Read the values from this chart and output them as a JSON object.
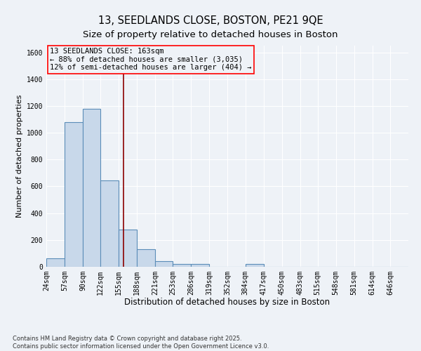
{
  "title1": "13, SEEDLANDS CLOSE, BOSTON, PE21 9QE",
  "title2": "Size of property relative to detached houses in Boston",
  "xlabel": "Distribution of detached houses by size in Boston",
  "ylabel": "Number of detached properties",
  "bin_edges": [
    24,
    57,
    90,
    122,
    155,
    188,
    221,
    253,
    286,
    319,
    352,
    384,
    417,
    450,
    483,
    515,
    548,
    581,
    614,
    646,
    679
  ],
  "bar_heights": [
    65,
    1080,
    1180,
    645,
    280,
    130,
    40,
    20,
    20,
    0,
    0,
    20,
    0,
    0,
    0,
    0,
    0,
    0,
    0,
    0
  ],
  "bar_color": "#c8d8ea",
  "bar_edgecolor": "#5b8db8",
  "bar_linewidth": 0.8,
  "vline_x": 163,
  "vline_color": "#8b0000",
  "vline_linewidth": 1.2,
  "annotation_line1": "13 SEEDLANDS CLOSE: 163sqm",
  "annotation_line2": "← 88% of detached houses are smaller (3,035)",
  "annotation_line3": "12% of semi-detached houses are larger (404) →",
  "ylim": [
    0,
    1650
  ],
  "yticks": [
    0,
    200,
    400,
    600,
    800,
    1000,
    1200,
    1400,
    1600
  ],
  "background_color": "#eef2f7",
  "grid_color": "#ffffff",
  "footer_text": "Contains HM Land Registry data © Crown copyright and database right 2025.\nContains public sector information licensed under the Open Government Licence v3.0.",
  "title1_fontsize": 10.5,
  "title2_fontsize": 9.5,
  "xlabel_fontsize": 8.5,
  "ylabel_fontsize": 8,
  "tick_fontsize": 7,
  "annotation_fontsize": 7.5,
  "footer_fontsize": 6
}
